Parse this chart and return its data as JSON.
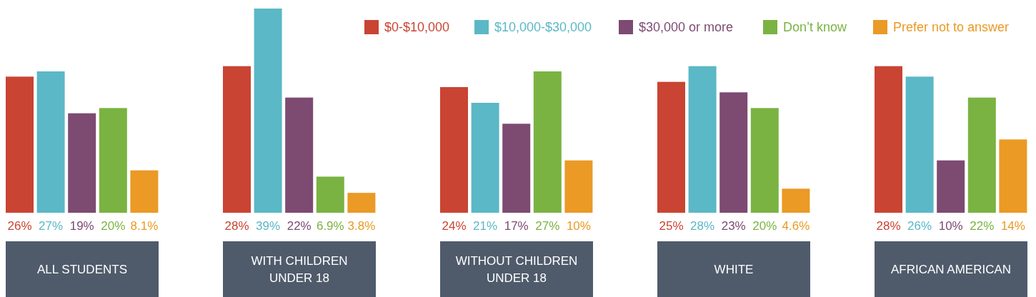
{
  "chart_data": {
    "type": "bar",
    "categories": [
      "ALL STUDENTS",
      "WITH CHILDREN UNDER 18",
      "WITHOUT CHILDREN UNDER 18",
      "WHITE",
      "AFRICAN AMERICAN"
    ],
    "series": [
      {
        "name": "$0-$10,000",
        "color": "#c94433",
        "values": [
          26,
          28,
          24,
          25,
          28
        ],
        "value_labels": [
          "26%",
          "28%",
          "24%",
          "25%",
          "28%"
        ]
      },
      {
        "name": "$10,000-$30,000",
        "color": "#5bb8c6",
        "values": [
          27,
          39,
          21,
          28,
          26
        ],
        "value_labels": [
          "27%",
          "39%",
          "21%",
          "28%",
          "26%"
        ]
      },
      {
        "name": "$30,000 or more",
        "color": "#7d4a72",
        "values": [
          19,
          22,
          17,
          23,
          10
        ],
        "value_labels": [
          "19%",
          "22%",
          "17%",
          "23%",
          "10%"
        ]
      },
      {
        "name": "Don’t know",
        "color": "#7ab342",
        "values": [
          20,
          6.9,
          27,
          20,
          22
        ],
        "value_labels": [
          "20%",
          "6.9%",
          "27%",
          "20%",
          "22%"
        ]
      },
      {
        "name": "Prefer not to answer",
        "color": "#ea9a25",
        "values": [
          8.1,
          3.8,
          10,
          4.6,
          14
        ],
        "value_labels": [
          "8.1%",
          "3.8%",
          "10%",
          "4.6%",
          "14%"
        ]
      }
    ],
    "legend": "top right"
  }
}
